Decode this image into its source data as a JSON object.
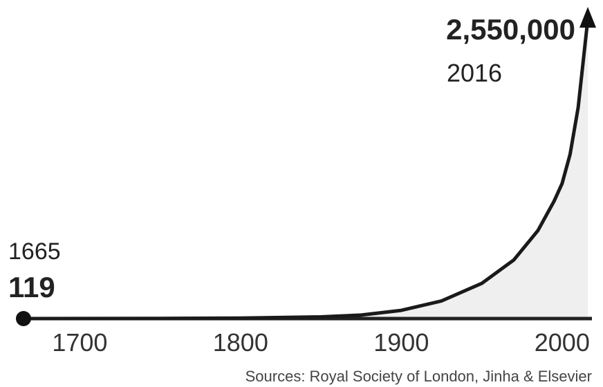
{
  "chart_data": {
    "type": "area",
    "title": "",
    "xlabel": "",
    "ylabel": "",
    "x_ticks": [
      "1700",
      "1800",
      "1900",
      "2000"
    ],
    "xlim": [
      1665,
      2016
    ],
    "ylim": [
      0,
      2550000
    ],
    "grid": false,
    "series": [
      {
        "x": [
          1665,
          1700,
          1750,
          1800,
          1850,
          1875,
          1900,
          1925,
          1950,
          1970,
          1985,
          1995,
          2000,
          2005,
          2010,
          2016
        ],
        "values": [
          119,
          500,
          1500,
          5000,
          15000,
          30000,
          70000,
          150000,
          300000,
          500000,
          750000,
          1000000,
          1150000,
          1400000,
          1800000,
          2550000
        ]
      }
    ],
    "start_annotation": {
      "year": "1665",
      "value": "119"
    },
    "end_annotation": {
      "year": "2016",
      "value": "2,550,000"
    },
    "source": "Sources: Royal Society of London, Jinha & Elsevier"
  }
}
